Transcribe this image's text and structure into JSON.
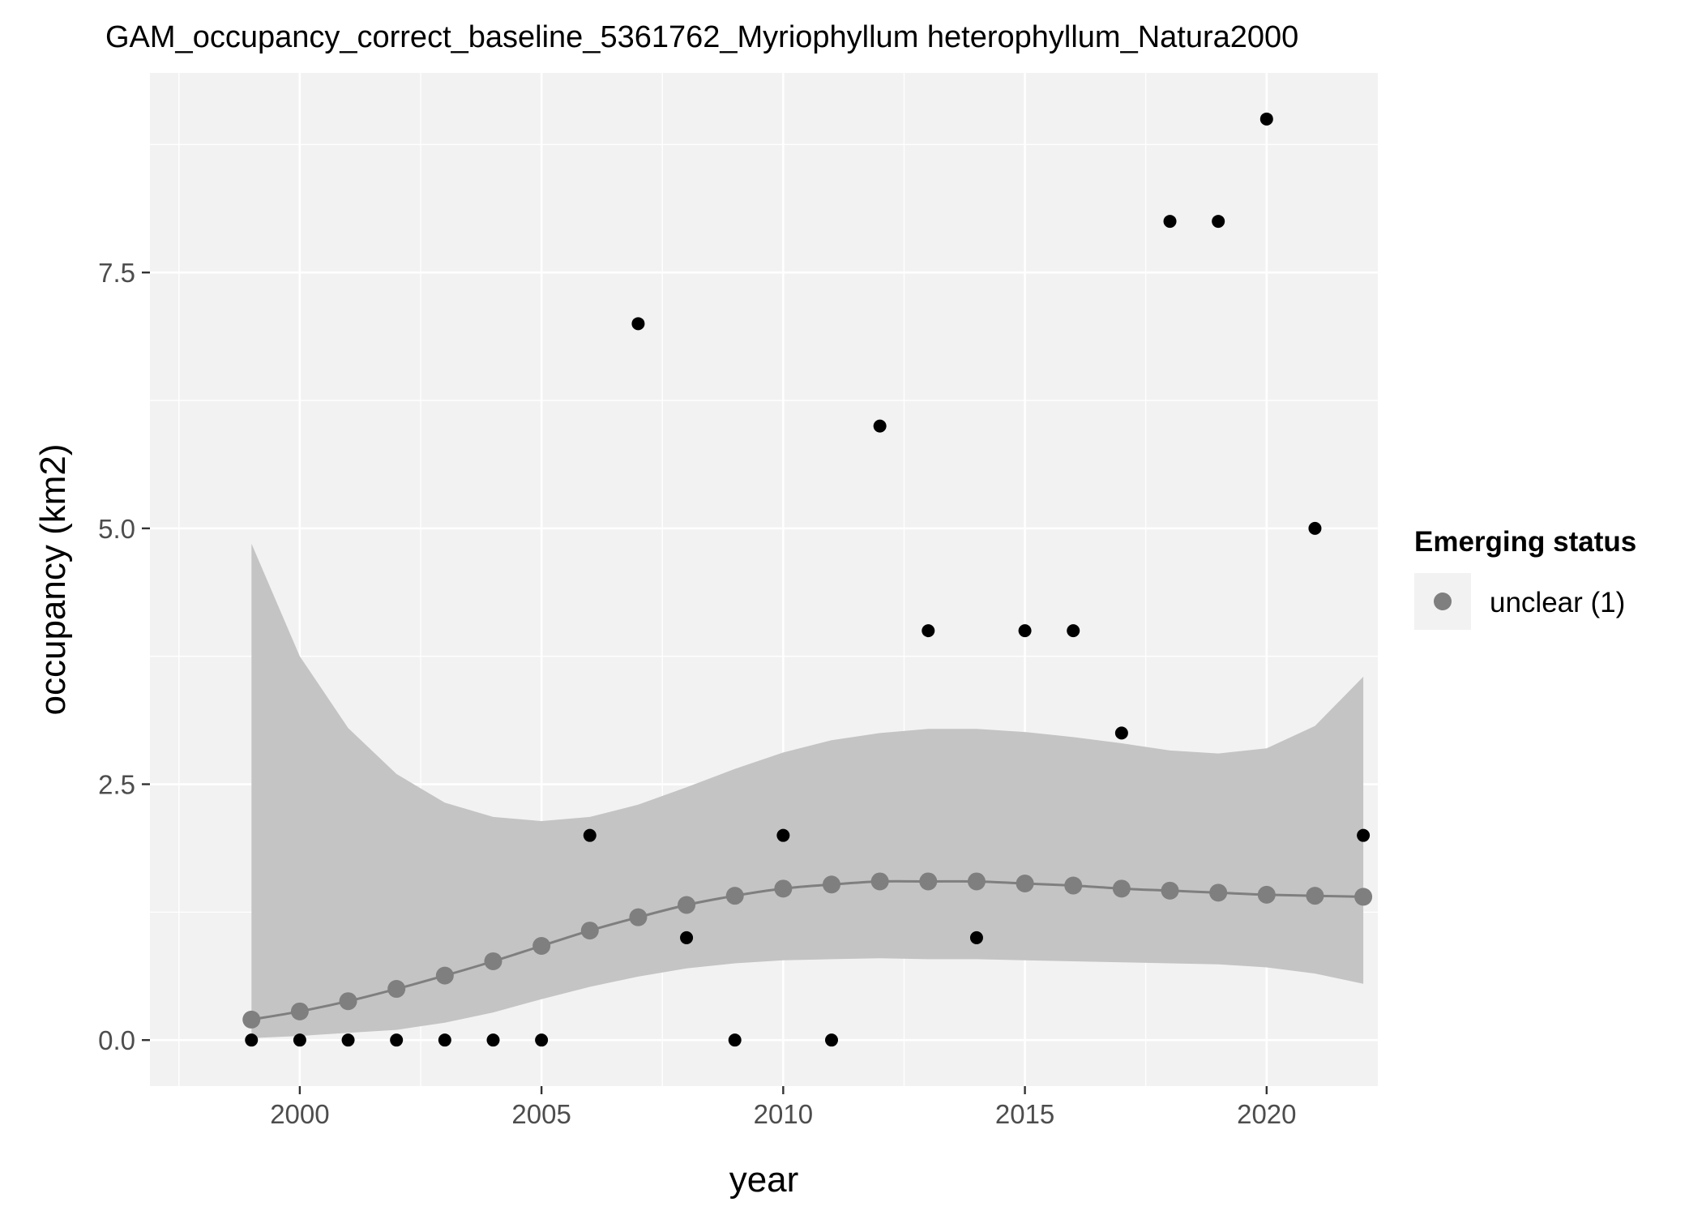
{
  "colors": {
    "panel_bg": "#f2f2f2",
    "grid_major": "#ffffff",
    "ribbon": "#c4c4c4",
    "fit_line": "#7f7f7f",
    "fit_points": "#7f7f7f",
    "observed_points": "#000000",
    "legend_key_bg": "#f2f2f2"
  },
  "chart_data": {
    "type": "scatter",
    "title": "GAM_occupancy_correct_baseline_5361762_Myriophyllum heterophyllum_Natura2000",
    "xlabel": "year",
    "ylabel": "occupancy (km2)",
    "xlim": [
      1996.9,
      2022.3
    ],
    "ylim": [
      -0.45,
      9.45
    ],
    "x_ticks": [
      2000,
      2005,
      2010,
      2015,
      2020
    ],
    "x_tick_labels": [
      "2000",
      "2005",
      "2010",
      "2015",
      "2020"
    ],
    "y_ticks": [
      0,
      2.5,
      5,
      7.5
    ],
    "y_tick_labels": [
      "0.0",
      "2.5",
      "5.0",
      "7.5"
    ],
    "grid": true,
    "legend": {
      "title": "Emerging status",
      "position": "right",
      "entries": [
        {
          "label": "unclear (1)",
          "color": "#7f7f7f"
        }
      ]
    },
    "observed": {
      "x": [
        1999,
        2000,
        2001,
        2002,
        2003,
        2004,
        2005,
        2006,
        2007,
        2008,
        2009,
        2010,
        2011,
        2012,
        2013,
        2014,
        2015,
        2016,
        2017,
        2018,
        2019,
        2020,
        2021,
        2022
      ],
      "y": [
        0,
        0,
        0,
        0,
        0,
        0,
        0,
        2,
        7,
        1,
        0,
        2,
        0,
        6,
        4,
        1,
        4,
        4,
        3,
        8,
        8,
        9,
        5,
        2
      ]
    },
    "fitted": {
      "x": [
        1999,
        2000,
        2001,
        2002,
        2003,
        2004,
        2005,
        2006,
        2007,
        2008,
        2009,
        2010,
        2011,
        2012,
        2013,
        2014,
        2015,
        2016,
        2017,
        2018,
        2019,
        2020,
        2021,
        2022
      ],
      "y": [
        0.2,
        0.28,
        0.38,
        0.5,
        0.63,
        0.77,
        0.92,
        1.07,
        1.2,
        1.32,
        1.41,
        1.48,
        1.52,
        1.55,
        1.55,
        1.55,
        1.53,
        1.51,
        1.48,
        1.46,
        1.44,
        1.42,
        1.41,
        1.4
      ],
      "lower": [
        0.02,
        0.04,
        0.07,
        0.1,
        0.17,
        0.27,
        0.4,
        0.52,
        0.62,
        0.7,
        0.75,
        0.78,
        0.79,
        0.8,
        0.79,
        0.79,
        0.78,
        0.77,
        0.76,
        0.75,
        0.74,
        0.71,
        0.65,
        0.55
      ],
      "upper": [
        4.85,
        3.75,
        3.05,
        2.6,
        2.32,
        2.18,
        2.14,
        2.18,
        2.3,
        2.47,
        2.65,
        2.81,
        2.93,
        3.0,
        3.04,
        3.04,
        3.01,
        2.96,
        2.9,
        2.83,
        2.8,
        2.85,
        3.07,
        3.55
      ]
    }
  }
}
